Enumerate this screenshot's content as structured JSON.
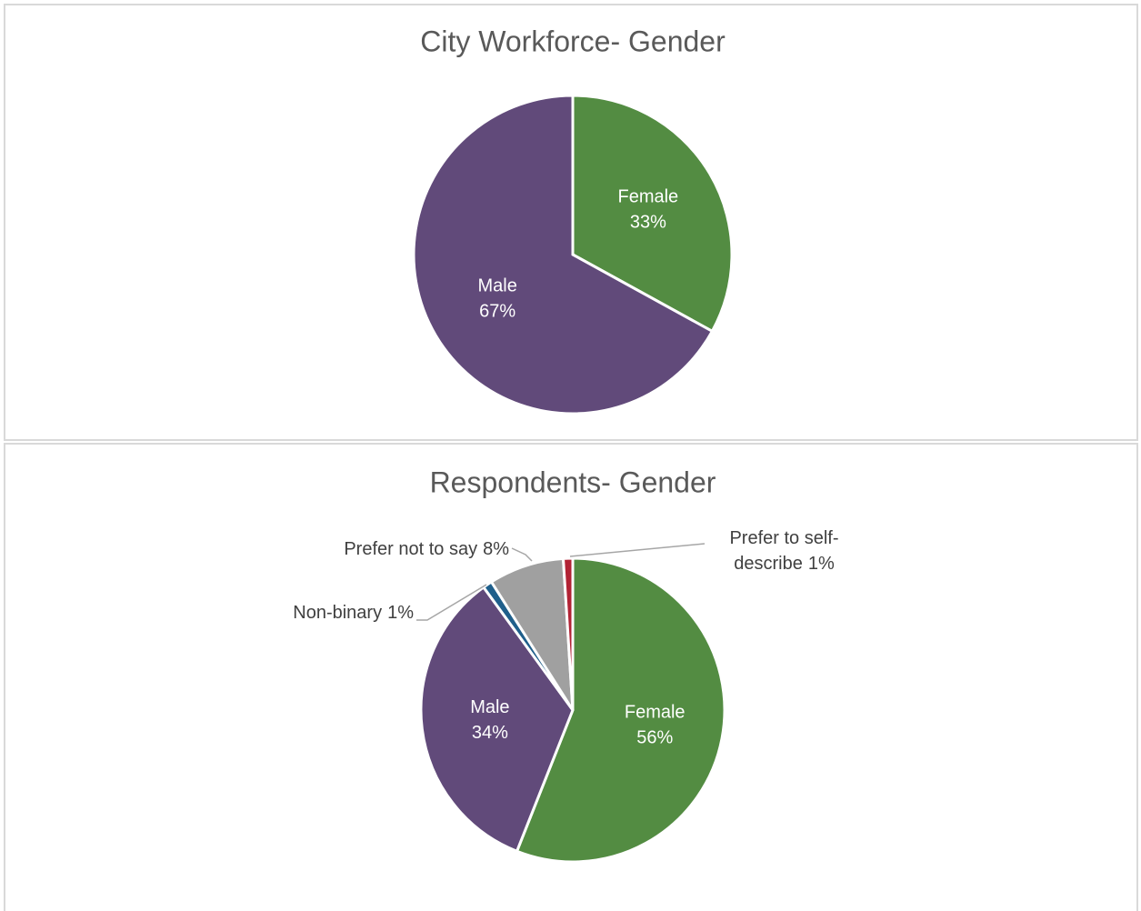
{
  "chart_data": [
    {
      "type": "pie",
      "title": "City Workforce- Gender",
      "categories": [
        "Female",
        "Male"
      ],
      "values": [
        33,
        67
      ],
      "value_labels": [
        "33%",
        "67%"
      ],
      "colors": [
        "#538c42",
        "#614a7a"
      ]
    },
    {
      "type": "pie",
      "title": "Respondents- Gender",
      "categories": [
        "Female",
        "Male",
        "Non-binary",
        "Prefer not to say",
        "Prefer to self-describe"
      ],
      "values": [
        56,
        34,
        1,
        8,
        1
      ],
      "value_labels": [
        "56%",
        "34%",
        "1%",
        "8%",
        "1%"
      ],
      "colors": [
        "#538c42",
        "#614a7a",
        "#1f5f8b",
        "#a0a0a0",
        "#b22234"
      ]
    }
  ]
}
